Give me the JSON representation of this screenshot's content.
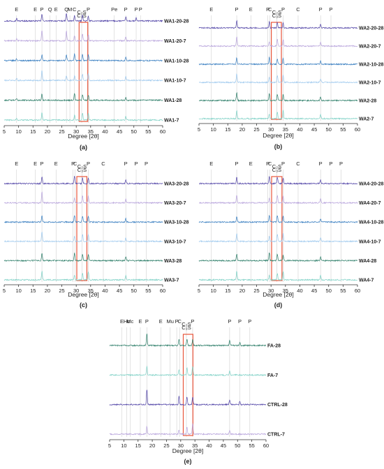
{
  "figure": {
    "xlabel": "Degree [2θ]",
    "xticks": [
      5,
      10,
      15,
      20,
      25,
      30,
      35,
      40,
      45,
      50,
      55,
      60
    ],
    "xlim": [
      5,
      60
    ]
  },
  "colors": {
    "sample_7": "#7fd1c6",
    "sample_28": "#2f7f6a",
    "sample_10_7": "#9ec9ee",
    "sample_10_28": "#3a7fc1",
    "sample_20_7": "#b8a4dc",
    "sample_20_28": "#5346a8",
    "highlight_box": "#e8553a",
    "reference_lines": "#d0d0d0"
  },
  "chart_data": [
    {
      "type": "line",
      "panel": "(a)",
      "xlabel": "Degree [2θ]",
      "xlim": [
        5,
        60
      ],
      "peak_labels": [
        {
          "text": "E",
          "x": 9.3
        },
        {
          "text": "E",
          "x": 15.8
        },
        {
          "text": "P",
          "x": 18.1
        },
        {
          "text": "Q",
          "x": 20.9
        },
        {
          "text": "E",
          "x": 23.0
        },
        {
          "text": "Q",
          "x": 26.6
        },
        {
          "text": "M",
          "x": 27.8
        },
        {
          "text": "C",
          "x": 29.4
        },
        {
          "text": "C₂S",
          "x": 31.9
        },
        {
          "text": "C₃S",
          "x": 31.9,
          "row": 2
        },
        {
          "text": "P",
          "x": 34.2
        },
        {
          "text": "Pe",
          "x": 43.2
        },
        {
          "text": "P",
          "x": 47.2
        },
        {
          "text": "P",
          "x": 50.8
        },
        {
          "text": "P",
          "x": 52.3
        }
      ],
      "highlight_range": [
        31.0,
        34.0
      ],
      "series": [
        {
          "name": "WA1-20-28",
          "color_key": "sample_20_28",
          "peaks": [
            [
              9.3,
              0.5
            ],
            [
              18.1,
              1.4
            ],
            [
              26.6,
              1.6
            ],
            [
              29.4,
              1.2
            ],
            [
              32.2,
              1.3
            ],
            [
              34.2,
              1.0
            ],
            [
              47.2,
              0.9
            ],
            [
              50.8,
              0.6
            ]
          ]
        },
        {
          "name": "WA1-20-7",
          "color_key": "sample_20_7",
          "peaks": [
            [
              9.3,
              0.4
            ],
            [
              18.1,
              2.2
            ],
            [
              26.6,
              2.0
            ],
            [
              29.4,
              1.1
            ],
            [
              32.2,
              1.4
            ],
            [
              34.2,
              1.3
            ],
            [
              47.2,
              0.8
            ]
          ]
        },
        {
          "name": "WA1-10-28",
          "color_key": "sample_10_28",
          "peaks": [
            [
              9.3,
              0.4
            ],
            [
              18.1,
              1.2
            ],
            [
              26.6,
              1.2
            ],
            [
              29.4,
              1.4
            ],
            [
              32.2,
              1.3
            ],
            [
              34.2,
              1.2
            ],
            [
              47.2,
              0.7
            ]
          ]
        },
        {
          "name": "WA1-10-7",
          "color_key": "sample_10_7",
          "peaks": [
            [
              9.3,
              0.4
            ],
            [
              18.1,
              2.0
            ],
            [
              26.6,
              1.0
            ],
            [
              29.4,
              1.0
            ],
            [
              32.2,
              1.3
            ],
            [
              34.2,
              1.5
            ],
            [
              47.2,
              0.8
            ]
          ]
        },
        {
          "name": "WA1-28",
          "color_key": "sample_28",
          "peaks": [
            [
              9.3,
              0.3
            ],
            [
              18.1,
              1.3
            ],
            [
              29.4,
              1.5
            ],
            [
              32.2,
              1.2
            ],
            [
              34.2,
              1.1
            ],
            [
              47.2,
              0.7
            ]
          ]
        },
        {
          "name": "WA1-7",
          "color_key": "sample_7",
          "peaks": [
            [
              9.3,
              0.3
            ],
            [
              18.1,
              1.6
            ],
            [
              29.4,
              1.0
            ],
            [
              32.2,
              1.4
            ],
            [
              34.2,
              1.4
            ],
            [
              47.2,
              0.8
            ]
          ]
        }
      ]
    },
    {
      "type": "line",
      "panel": "(b)",
      "xlabel": "Degree [2θ]",
      "xlim": [
        5,
        60
      ],
      "peak_labels": [
        {
          "text": "E",
          "x": 9.3
        },
        {
          "text": "P",
          "x": 18.1
        },
        {
          "text": "E",
          "x": 23.0
        },
        {
          "text": "P",
          "x": 28.9
        },
        {
          "text": "C",
          "x": 29.6
        },
        {
          "text": "C₂S",
          "x": 32.0
        },
        {
          "text": "C₃S",
          "x": 32.0,
          "row": 2
        },
        {
          "text": "P",
          "x": 34.2
        },
        {
          "text": "C",
          "x": 39.4
        },
        {
          "text": "P",
          "x": 47.2
        },
        {
          "text": "P",
          "x": 50.8
        }
      ],
      "highlight_range": [
        30.1,
        33.6
      ],
      "series": [
        {
          "name": "WA2-20-28",
          "color_key": "sample_20_28",
          "peaks": [
            [
              18.1,
              1.5
            ],
            [
              29.4,
              1.3
            ],
            [
              32.2,
              1.2
            ],
            [
              34.2,
              1.1
            ],
            [
              47.2,
              0.8
            ]
          ]
        },
        {
          "name": "WA2-20-7",
          "color_key": "sample_20_7",
          "peaks": [
            [
              18.1,
              2.0
            ],
            [
              29.4,
              0.9
            ],
            [
              32.2,
              1.4
            ],
            [
              34.2,
              1.4
            ],
            [
              47.2,
              0.8
            ]
          ]
        },
        {
          "name": "WA2-10-28",
          "color_key": "sample_10_28",
          "peaks": [
            [
              18.1,
              1.3
            ],
            [
              29.4,
              1.4
            ],
            [
              32.2,
              1.2
            ],
            [
              34.2,
              1.2
            ],
            [
              47.2,
              0.7
            ]
          ]
        },
        {
          "name": "WA2-10-7",
          "color_key": "sample_10_7",
          "peaks": [
            [
              18.1,
              1.8
            ],
            [
              29.4,
              1.0
            ],
            [
              32.2,
              1.4
            ],
            [
              34.2,
              1.6
            ],
            [
              47.2,
              0.8
            ]
          ]
        },
        {
          "name": "WA2-28",
          "color_key": "sample_28",
          "peaks": [
            [
              18.1,
              1.6
            ],
            [
              29.4,
              1.5
            ],
            [
              32.2,
              1.3
            ],
            [
              34.2,
              1.2
            ],
            [
              47.2,
              0.8
            ]
          ]
        },
        {
          "name": "WA2-7",
          "color_key": "sample_7",
          "peaks": [
            [
              18.1,
              1.7
            ],
            [
              29.4,
              1.0
            ],
            [
              32.2,
              1.3
            ],
            [
              34.2,
              1.8
            ],
            [
              47.2,
              0.9
            ]
          ]
        }
      ]
    },
    {
      "type": "line",
      "panel": "(c)",
      "xlabel": "Degree [2θ]",
      "xlim": [
        5,
        60
      ],
      "peak_labels": [
        {
          "text": "E",
          "x": 9.3
        },
        {
          "text": "E",
          "x": 15.8
        },
        {
          "text": "P",
          "x": 18.1
        },
        {
          "text": "E",
          "x": 23.0
        },
        {
          "text": "P",
          "x": 28.9
        },
        {
          "text": "C",
          "x": 29.6
        },
        {
          "text": "C₂S",
          "x": 32.0
        },
        {
          "text": "C₃S",
          "x": 32.0,
          "row": 2
        },
        {
          "text": "P",
          "x": 34.2
        },
        {
          "text": "C",
          "x": 39.4
        },
        {
          "text": "P",
          "x": 47.2
        },
        {
          "text": "P",
          "x": 50.8
        },
        {
          "text": "P",
          "x": 54.3
        }
      ],
      "highlight_range": [
        30.2,
        33.7
      ],
      "series": [
        {
          "name": "WA3-20-28",
          "color_key": "sample_20_28",
          "peaks": [
            [
              18.1,
              1.5
            ],
            [
              29.4,
              1.5
            ],
            [
              32.2,
              1.2
            ],
            [
              34.2,
              1.2
            ],
            [
              47.2,
              0.8
            ]
          ]
        },
        {
          "name": "WA3-20-7",
          "color_key": "sample_20_7",
          "peaks": [
            [
              18.1,
              2.2
            ],
            [
              29.4,
              1.0
            ],
            [
              32.2,
              1.4
            ],
            [
              34.2,
              1.4
            ],
            [
              47.2,
              0.8
            ]
          ]
        },
        {
          "name": "WA3-10-28",
          "color_key": "sample_10_28",
          "peaks": [
            [
              18.1,
              1.3
            ],
            [
              29.4,
              1.4
            ],
            [
              32.2,
              1.3
            ],
            [
              34.2,
              1.2
            ],
            [
              47.2,
              0.7
            ]
          ]
        },
        {
          "name": "WA3-10-7",
          "color_key": "sample_10_7",
          "peaks": [
            [
              18.1,
              2.0
            ],
            [
              29.4,
              1.0
            ],
            [
              32.2,
              1.4
            ],
            [
              34.2,
              1.5
            ],
            [
              47.2,
              0.8
            ]
          ]
        },
        {
          "name": "WA3-28",
          "color_key": "sample_28",
          "peaks": [
            [
              18.1,
              1.6
            ],
            [
              29.4,
              1.6
            ],
            [
              32.2,
              1.3
            ],
            [
              34.2,
              1.2
            ],
            [
              47.2,
              0.8
            ]
          ]
        },
        {
          "name": "WA3-7",
          "color_key": "sample_7",
          "peaks": [
            [
              18.1,
              1.8
            ],
            [
              29.4,
              1.0
            ],
            [
              32.2,
              1.3
            ],
            [
              34.2,
              1.7
            ],
            [
              47.2,
              0.9
            ]
          ]
        }
      ]
    },
    {
      "type": "line",
      "panel": "(d)",
      "xlabel": "Degree [2θ]",
      "xlim": [
        5,
        60
      ],
      "peak_labels": [
        {
          "text": "E",
          "x": 9.3
        },
        {
          "text": "P",
          "x": 18.1
        },
        {
          "text": "E",
          "x": 23.0
        },
        {
          "text": "P",
          "x": 28.9
        },
        {
          "text": "C",
          "x": 29.6
        },
        {
          "text": "C₂S",
          "x": 32.0
        },
        {
          "text": "C₃S",
          "x": 32.0,
          "row": 2
        },
        {
          "text": "P",
          "x": 34.2
        },
        {
          "text": "C",
          "x": 39.4
        },
        {
          "text": "P",
          "x": 47.2
        },
        {
          "text": "P",
          "x": 50.8
        },
        {
          "text": "P",
          "x": 54.3
        }
      ],
      "highlight_range": [
        30.2,
        33.8
      ],
      "series": [
        {
          "name": "WA4-20-28",
          "color_key": "sample_20_28",
          "peaks": [
            [
              18.1,
              1.3
            ],
            [
              29.4,
              1.4
            ],
            [
              32.2,
              1.3
            ],
            [
              34.2,
              1.2
            ],
            [
              47.2,
              0.8
            ]
          ]
        },
        {
          "name": "WA4-20-7",
          "color_key": "sample_20_7",
          "peaks": [
            [
              18.1,
              1.6
            ],
            [
              29.4,
              1.0
            ],
            [
              32.2,
              1.5
            ],
            [
              34.2,
              1.4
            ],
            [
              47.2,
              0.8
            ]
          ]
        },
        {
          "name": "WA4-10-28",
          "color_key": "sample_10_28",
          "peaks": [
            [
              18.1,
              1.2
            ],
            [
              29.4,
              1.4
            ],
            [
              32.2,
              1.4
            ],
            [
              34.2,
              1.3
            ],
            [
              47.2,
              0.7
            ]
          ]
        },
        {
          "name": "WA4-10-7",
          "color_key": "sample_10_7",
          "peaks": [
            [
              18.1,
              1.6
            ],
            [
              29.4,
              1.0
            ],
            [
              32.2,
              1.4
            ],
            [
              34.2,
              1.6
            ],
            [
              47.2,
              0.8
            ]
          ]
        },
        {
          "name": "WA4-28",
          "color_key": "sample_28",
          "peaks": [
            [
              18.1,
              1.4
            ],
            [
              29.4,
              1.6
            ],
            [
              32.2,
              1.3
            ],
            [
              34.2,
              1.2
            ],
            [
              47.2,
              0.8
            ]
          ]
        },
        {
          "name": "WA4-7",
          "color_key": "sample_7",
          "peaks": [
            [
              18.1,
              1.8
            ],
            [
              29.4,
              1.0
            ],
            [
              32.2,
              1.3
            ],
            [
              34.2,
              1.8
            ],
            [
              47.2,
              0.9
            ]
          ]
        }
      ]
    },
    {
      "type": "line",
      "panel": "(e)",
      "xlabel": "Degree [2θ]",
      "xlim": [
        5,
        60
      ],
      "peak_labels": [
        {
          "text": "E",
          "x": 9.3
        },
        {
          "text": "Hc",
          "x": 11.0
        },
        {
          "text": "Mc",
          "x": 12.2
        },
        {
          "text": "E",
          "x": 15.8
        },
        {
          "text": "P",
          "x": 18.1
        },
        {
          "text": "E",
          "x": 23.0
        },
        {
          "text": "Mu",
          "x": 26.3
        },
        {
          "text": "P",
          "x": 28.6
        },
        {
          "text": "C",
          "x": 29.6
        },
        {
          "text": "C₂S",
          "x": 32.0
        },
        {
          "text": "C₃S",
          "x": 32.0,
          "row": 2
        },
        {
          "text": "P",
          "x": 34.2
        },
        {
          "text": "P",
          "x": 47.2
        },
        {
          "text": "P",
          "x": 50.8
        },
        {
          "text": "P",
          "x": 54.3
        }
      ],
      "highlight_range": [
        30.9,
        34.3
      ],
      "series": [
        {
          "name": "FA-28",
          "color_key": "sample_28",
          "peaks": [
            [
              18.1,
              2.4
            ],
            [
              29.4,
              1.4
            ],
            [
              32.2,
              1.4
            ],
            [
              34.2,
              1.2
            ],
            [
              47.2,
              1.0
            ],
            [
              50.8,
              0.6
            ]
          ]
        },
        {
          "name": "FA-7",
          "color_key": "sample_7",
          "peaks": [
            [
              18.1,
              1.8
            ],
            [
              29.4,
              1.0
            ],
            [
              32.2,
              1.5
            ],
            [
              34.2,
              1.8
            ],
            [
              47.2,
              0.8
            ]
          ]
        },
        {
          "name": "CTRL-28",
          "color_key": "sample_20_28",
          "peaks": [
            [
              18.1,
              3.2
            ],
            [
              29.4,
              1.8
            ],
            [
              32.2,
              1.6
            ],
            [
              34.2,
              1.6
            ],
            [
              47.2,
              1.0
            ],
            [
              50.8,
              0.7
            ]
          ]
        },
        {
          "name": "CTRL-7",
          "color_key": "sample_20_7",
          "peaks": [
            [
              18.1,
              1.6
            ],
            [
              29.4,
              0.9
            ],
            [
              32.2,
              1.4
            ],
            [
              34.2,
              2.2
            ],
            [
              47.2,
              0.8
            ]
          ]
        }
      ]
    }
  ]
}
